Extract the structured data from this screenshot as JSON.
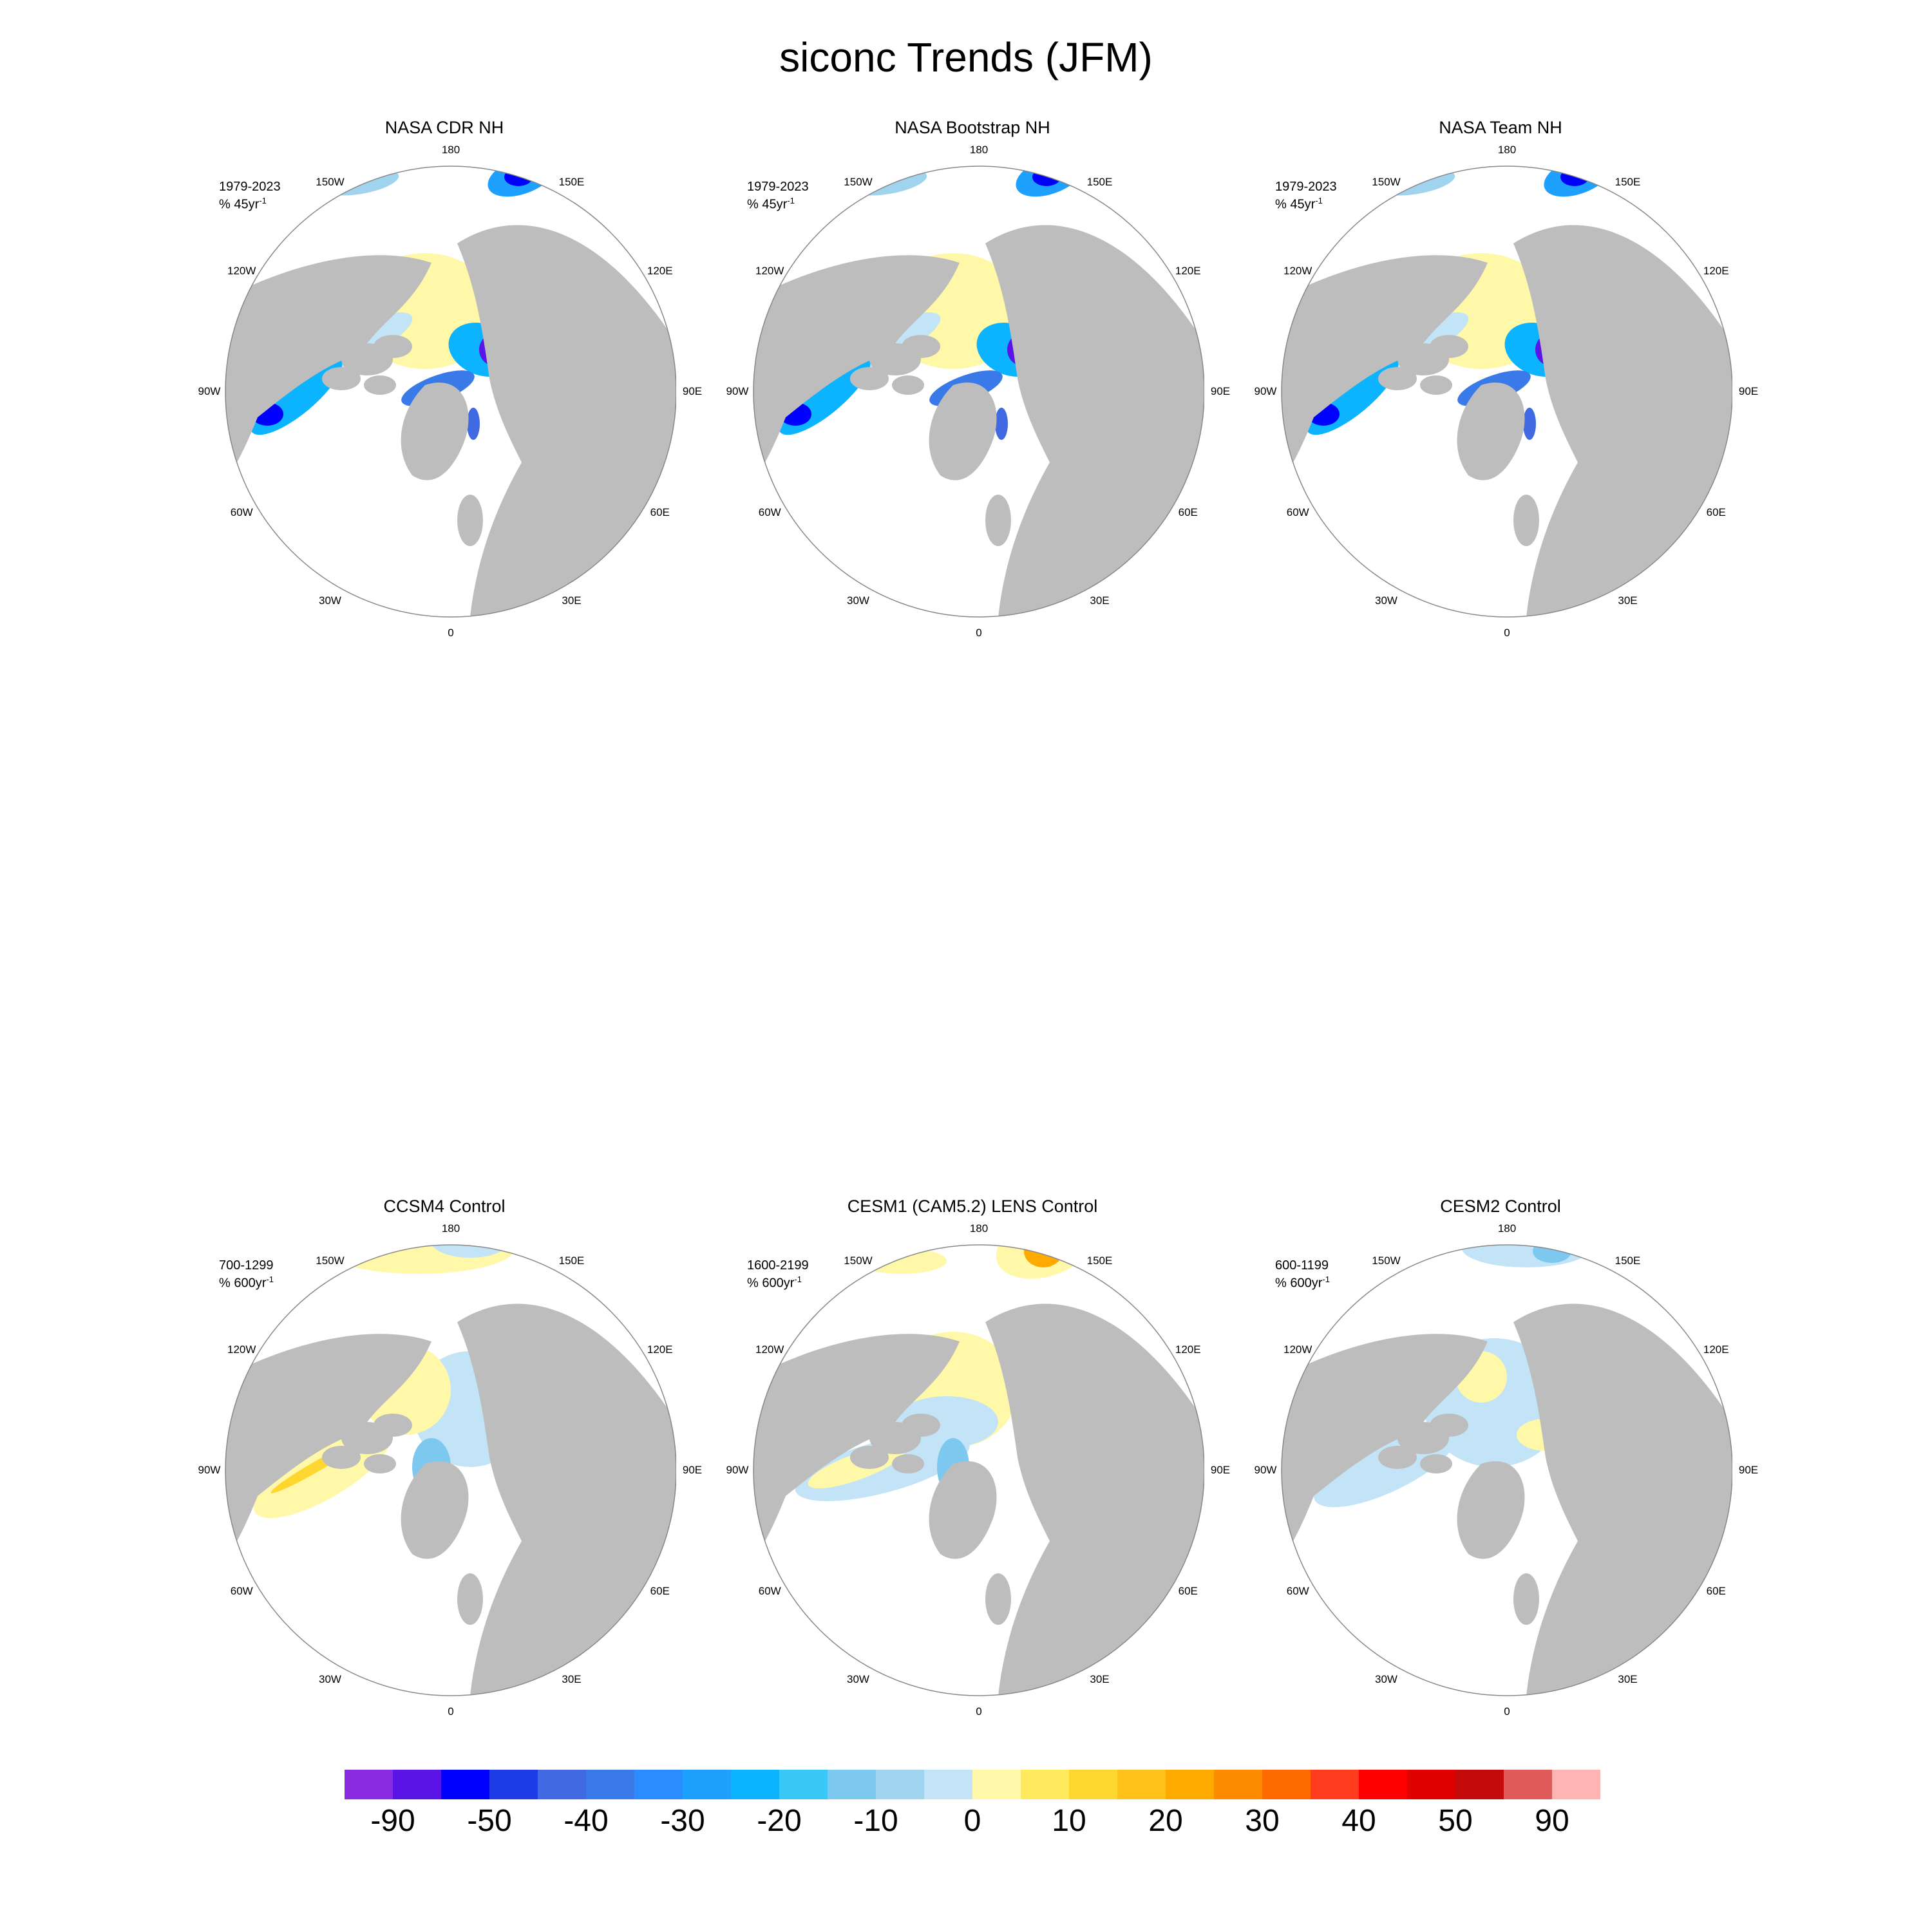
{
  "title": "siconc Trends (JFM)",
  "colors": {
    "land": "#bdbdbd",
    "ocean": "#ffffff",
    "outline": "#888888"
  },
  "lon_labels": [
    "180",
    "150E",
    "120E",
    "90E",
    "60E",
    "30E",
    "0",
    "30W",
    "60W",
    "90W",
    "120W",
    "150W"
  ],
  "panels": [
    {
      "title": "NASA CDR NH",
      "period": "1979-2023",
      "unit_prefix": "% 45yr",
      "unit_exp": "-1",
      "style": "obs"
    },
    {
      "title": "NASA Bootstrap NH",
      "period": "1979-2023",
      "unit_prefix": "% 45yr",
      "unit_exp": "-1",
      "style": "obs"
    },
    {
      "title": "NASA Team NH",
      "period": "1979-2023",
      "unit_prefix": "% 45yr",
      "unit_exp": "-1",
      "style": "obs"
    },
    {
      "title": "CCSM4 Control",
      "period": "700-1299",
      "unit_prefix": "% 600yr",
      "unit_exp": "-1",
      "style": "ccsm4"
    },
    {
      "title": "CESM1 (CAM5.2) LENS Control",
      "period": "1600-2199",
      "unit_prefix": "% 600yr",
      "unit_exp": "-1",
      "style": "cesm1"
    },
    {
      "title": "CESM2 Control",
      "period": "600-1199",
      "unit_prefix": "% 600yr",
      "unit_exp": "-1",
      "style": "cesm2"
    }
  ],
  "colorbar": {
    "colors": [
      "#8a2be2",
      "#5a14e6",
      "#0000ff",
      "#1e3ce6",
      "#4169e1",
      "#3a7ae8",
      "#2b8cff",
      "#1ea0ff",
      "#0cb4ff",
      "#38c8f8",
      "#7cc8ee",
      "#a0d4ee",
      "#c2e4f6",
      "#fff8a8",
      "#ffe95c",
      "#ffd630",
      "#ffc21a",
      "#ffaa00",
      "#ff8c00",
      "#ff6a00",
      "#ff3c1e",
      "#ff0000",
      "#e00000",
      "#c40a0a",
      "#e05a5a",
      "#ffb4b4"
    ],
    "labels": [
      "-90",
      "-50",
      "-40",
      "-30",
      "-20",
      "-10",
      "0",
      "10",
      "20",
      "30",
      "40",
      "50",
      "90"
    ]
  }
}
